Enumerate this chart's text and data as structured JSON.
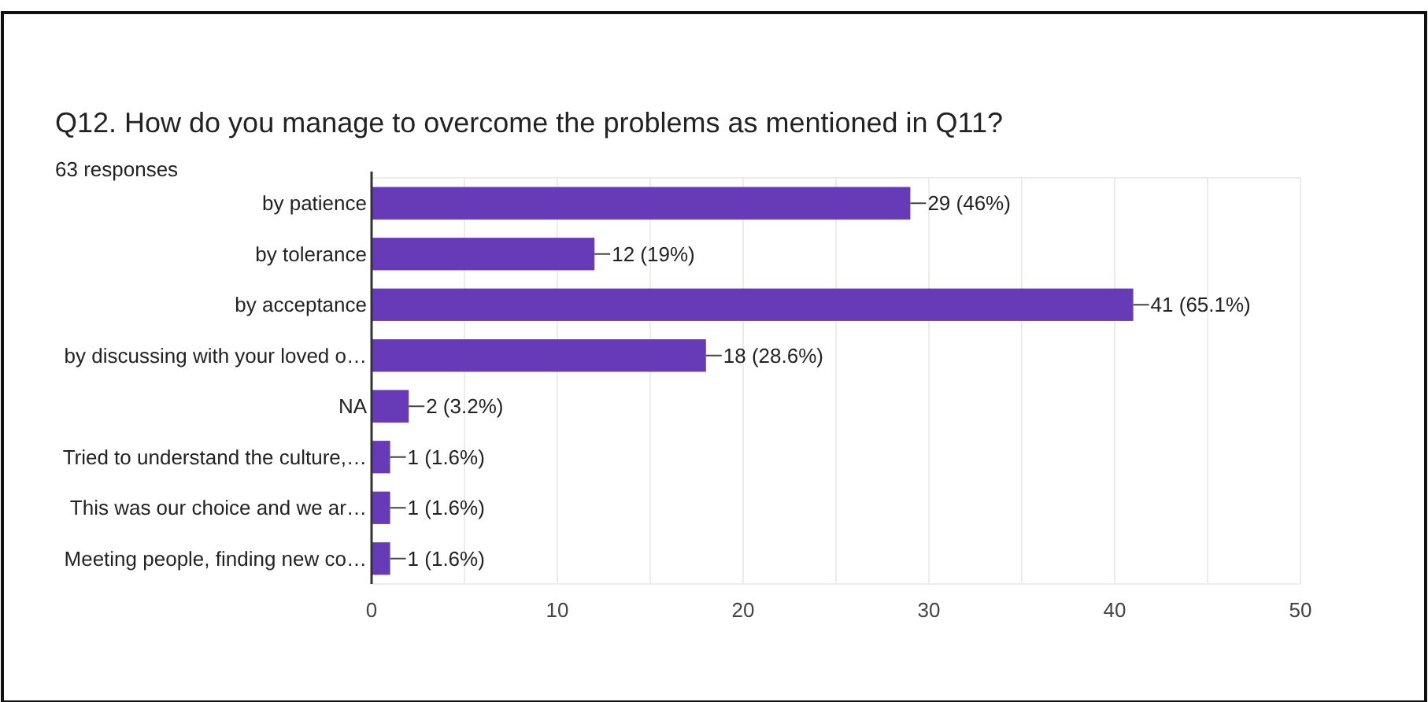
{
  "chart_data": {
    "type": "bar",
    "orientation": "horizontal",
    "title": "Q12. How do you manage to overcome the problems as mentioned in Q11?",
    "subtitle": "63 responses",
    "categories": [
      "by patience",
      "by tolerance",
      "by acceptance",
      "by discussing with your loved o…",
      "NA",
      "Tried to understand the culture,…",
      "This was our choice and we ar…",
      "Meeting people, finding new co…"
    ],
    "values": [
      29,
      12,
      41,
      18,
      2,
      1,
      1,
      1
    ],
    "value_labels": [
      "29 (46%)",
      "12 (19%)",
      "41 (65.1%)",
      "18 (28.6%)",
      "2 (3.2%)",
      "1 (1.6%)",
      "1 (1.6%)",
      "1 (1.6%)"
    ],
    "color": "#673ab7",
    "xlim": [
      0,
      50
    ],
    "xticks": [
      0,
      {
        "value": 5,
        "label": null
      },
      10,
      {
        "value": 15,
        "label": null
      },
      20,
      {
        "value": 25,
        "label": null
      },
      30,
      {
        "value": 35,
        "label": null
      },
      40,
      {
        "value": 45,
        "label": null
      },
      50
    ],
    "grid": "x"
  }
}
